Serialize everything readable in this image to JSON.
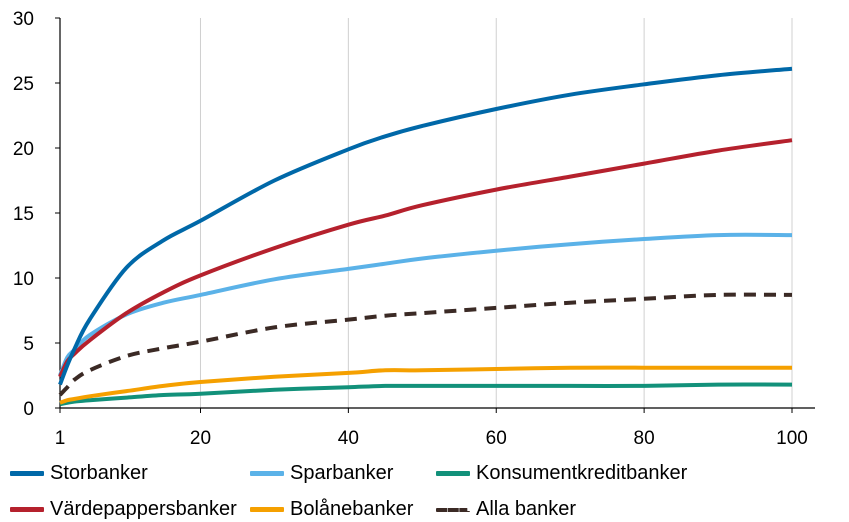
{
  "chart_data": {
    "type": "line",
    "title": "",
    "xlabel": "",
    "ylabel": "",
    "xlim": [
      1,
      100
    ],
    "ylim": [
      0,
      30
    ],
    "x_ticks": [
      "1",
      "20",
      "40",
      "60",
      "80",
      "100"
    ],
    "x_tick_values": [
      1,
      20,
      40,
      60,
      80,
      100
    ],
    "y_ticks": [
      "0",
      "5",
      "10",
      "15",
      "20",
      "25",
      "30"
    ],
    "y_tick_values": [
      0,
      5,
      10,
      15,
      20,
      25,
      30
    ],
    "grid": "vertical",
    "legend_position": "bottom",
    "x": [
      1,
      2,
      3,
      5,
      10,
      15,
      20,
      30,
      40,
      45,
      50,
      60,
      70,
      80,
      90,
      100
    ],
    "series": [
      {
        "name": "Storbanker",
        "color": "#0068a8",
        "dash": "solid",
        "values": [
          1.8,
          3.3,
          4.6,
          6.8,
          10.8,
          12.9,
          14.4,
          17.5,
          19.9,
          20.9,
          21.7,
          23.0,
          24.1,
          24.9,
          25.6,
          26.1
        ]
      },
      {
        "name": "Sparbanker",
        "color": "#5bb2e8",
        "dash": "solid",
        "values": [
          2.5,
          3.9,
          4.5,
          5.6,
          7.2,
          8.1,
          8.7,
          9.9,
          10.7,
          11.1,
          11.5,
          12.1,
          12.6,
          13.0,
          13.3,
          13.3
        ]
      },
      {
        "name": "Konsumentkreditbanker",
        "color": "#12917a",
        "dash": "solid",
        "values": [
          0.3,
          0.4,
          0.5,
          0.6,
          0.8,
          1.0,
          1.1,
          1.4,
          1.6,
          1.7,
          1.7,
          1.7,
          1.7,
          1.7,
          1.8,
          1.8
        ]
      },
      {
        "name": "Värdepappersbanker",
        "color": "#b5212d",
        "dash": "solid",
        "values": [
          2.4,
          3.6,
          4.2,
          5.2,
          7.3,
          8.9,
          10.2,
          12.3,
          14.1,
          14.8,
          15.6,
          16.8,
          17.8,
          18.8,
          19.8,
          20.6
        ]
      },
      {
        "name": "Bolånebanker",
        "color": "#f5a000",
        "dash": "solid",
        "values": [
          0.4,
          0.6,
          0.7,
          0.9,
          1.3,
          1.7,
          2.0,
          2.4,
          2.7,
          2.9,
          2.9,
          3.0,
          3.1,
          3.1,
          3.1,
          3.1
        ]
      },
      {
        "name": "Alla banker",
        "color": "#3b2a25",
        "dash": "dashed",
        "values": [
          1.0,
          1.6,
          2.2,
          2.9,
          4.0,
          4.6,
          5.1,
          6.2,
          6.8,
          7.1,
          7.3,
          7.7,
          8.1,
          8.4,
          8.7,
          8.7
        ]
      }
    ]
  }
}
